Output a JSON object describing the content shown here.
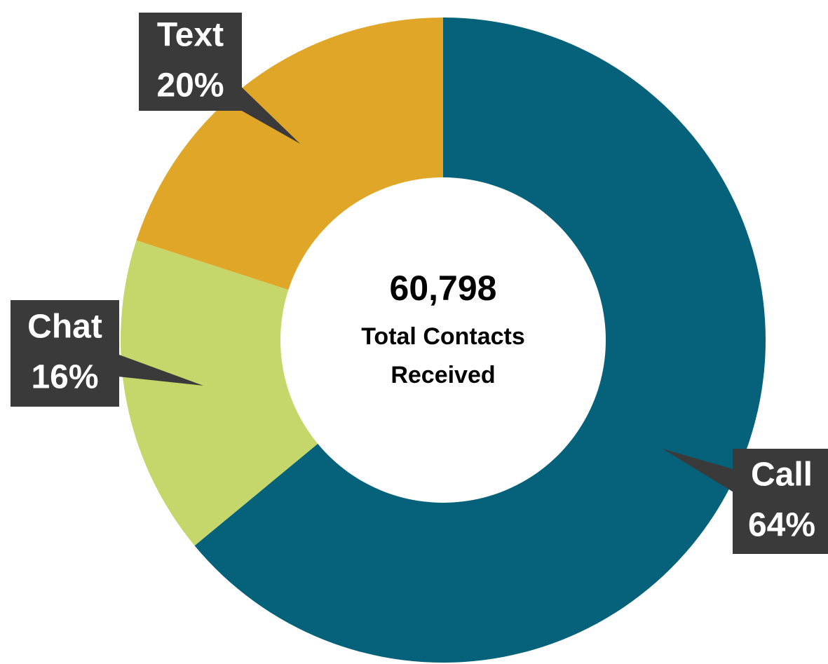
{
  "chart_data": {
    "type": "donut",
    "categories": [
      "Call",
      "Chat",
      "Text"
    ],
    "values": [
      64,
      16,
      20
    ],
    "value_labels": [
      "64%",
      "16%",
      "20%"
    ],
    "colors": [
      "#05627a",
      "#c5d66b",
      "#e0a628"
    ],
    "center_value_label": "60,798",
    "center_text": [
      "Total Contacts",
      "Received"
    ]
  }
}
